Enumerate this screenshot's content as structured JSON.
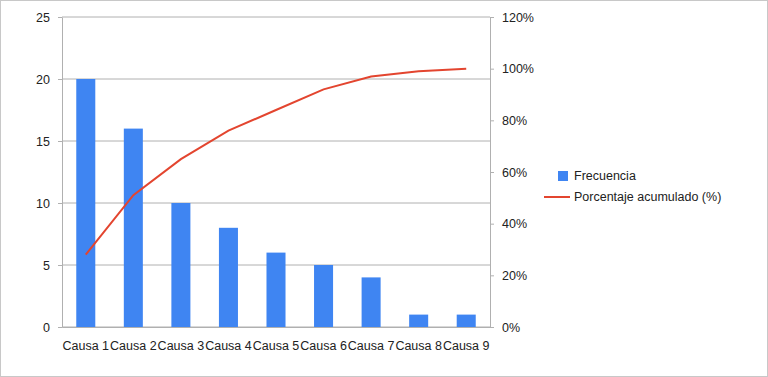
{
  "chart_data": {
    "type": "bar",
    "categories": [
      "Causa 1",
      "Causa 2",
      "Causa 3",
      "Causa 4",
      "Causa 5",
      "Causa 6",
      "Causa 7",
      "Causa 8",
      "Causa 9"
    ],
    "series": [
      {
        "name": "Frecuencia",
        "type": "bar",
        "color": "#3f85f2",
        "values": [
          20,
          16,
          10,
          8,
          6,
          5,
          4,
          1,
          1
        ]
      },
      {
        "name": "Porcentaje acumulado (%)",
        "type": "line",
        "axis": "y2",
        "color": "#e3452f",
        "values": [
          28,
          51,
          65,
          76,
          84,
          92,
          97,
          99,
          100
        ]
      }
    ],
    "ylim": [
      0,
      25
    ],
    "yticks": [
      0,
      5,
      10,
      15,
      20,
      25
    ],
    "y2lim": [
      0,
      120
    ],
    "y2ticks": [
      {
        "value": 0,
        "label": "0%"
      },
      {
        "value": 20,
        "label": "20%"
      },
      {
        "value": 40,
        "label": "40%"
      },
      {
        "value": 60,
        "label": "60%"
      },
      {
        "value": 80,
        "label": "80%"
      },
      {
        "value": 100,
        "label": "100%"
      },
      {
        "value": 120,
        "label": "120%"
      }
    ],
    "grid": true,
    "legend": "right"
  }
}
